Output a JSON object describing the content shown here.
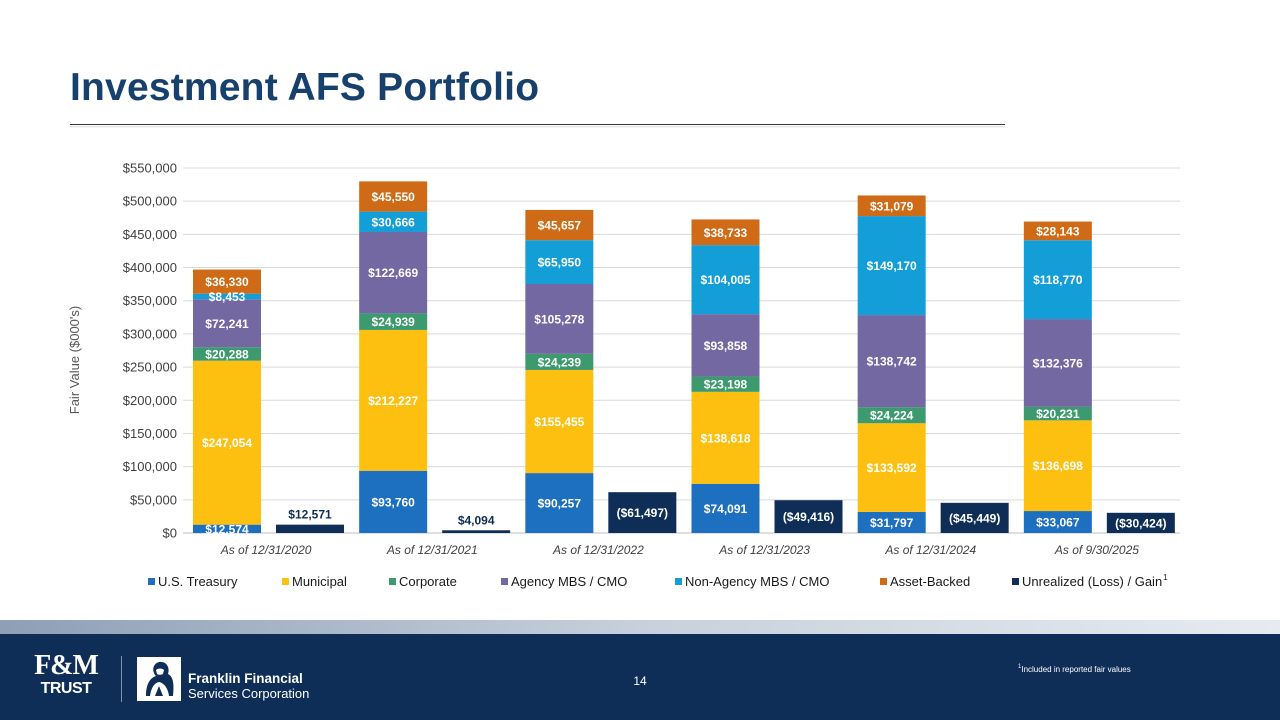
{
  "slide": {
    "title": "Investment AFS Portfolio",
    "page_number": "14",
    "footnote_marker": "1",
    "footnote_text": "Included in reported fair values"
  },
  "footer": {
    "fm_logo_top": "F&M",
    "fm_logo_bottom": "TRUST",
    "company_line1": "Franklin Financial",
    "company_line2": "Services Corporation"
  },
  "colors": {
    "title": "#17406d",
    "footer_bg": "#0e2d57",
    "treasury": "#1d6fbf",
    "municipal": "#fdc011",
    "corporate": "#3c9a6e",
    "agency": "#7468a3",
    "non_agency": "#149ed8",
    "asset_backed": "#cf6b16",
    "unrealized": "#0e2d57"
  },
  "chart_data": {
    "type": "bar",
    "stacked": true,
    "ylabel": "Fair Value ($000's)",
    "ylim": [
      0,
      550000
    ],
    "y_tick_step": 50000,
    "y_tick_labels": [
      "$0",
      "$50,000",
      "$100,000",
      "$150,000",
      "$200,000",
      "$250,000",
      "$300,000",
      "$350,000",
      "$400,000",
      "$450,000",
      "$500,000",
      "$550,000"
    ],
    "grid": true,
    "legend_position": "bottom",
    "categories": [
      "As of 12/31/2020",
      "As of 12/31/2021",
      "As of 12/31/2022",
      "As of 12/31/2023",
      "As of 12/31/2024",
      "As of 9/30/2025"
    ],
    "series": [
      {
        "key": "treasury",
        "name": "U.S. Treasury",
        "values": [
          12574,
          93760,
          90257,
          74091,
          31797,
          33067
        ],
        "labels": [
          "$12,574",
          "$93,760",
          "$90,257",
          "$74,091",
          "$31,797",
          "$33,067"
        ]
      },
      {
        "key": "municipal",
        "name": "Municipal",
        "values": [
          247054,
          212227,
          155455,
          138618,
          133592,
          136698
        ],
        "labels": [
          "$247,054",
          "$212,227",
          "$155,455",
          "$138,618",
          "$133,592",
          "$136,698"
        ]
      },
      {
        "key": "corporate",
        "name": "Corporate",
        "values": [
          20288,
          24939,
          24239,
          23198,
          24224,
          20231
        ],
        "labels": [
          "$20,288",
          "$24,939",
          "$24,239",
          "$23,198",
          "$24,224",
          "$20,231"
        ]
      },
      {
        "key": "agency",
        "name": "Agency MBS / CMO",
        "values": [
          72241,
          122669,
          105278,
          93858,
          138742,
          132376
        ],
        "labels": [
          "$72,241",
          "$122,669",
          "$105,278",
          "$93,858",
          "$138,742",
          "$132,376"
        ]
      },
      {
        "key": "non_agency",
        "name": "Non-Agency MBS / CMO",
        "values": [
          8453,
          30666,
          65950,
          104005,
          149170,
          118770
        ],
        "labels": [
          "$8,453",
          "$30,666",
          "$65,950",
          "$104,005",
          "$149,170",
          "$118,770"
        ]
      },
      {
        "key": "asset_backed",
        "name": "Asset-Backed",
        "values": [
          36330,
          45550,
          45657,
          38733,
          31079,
          28143
        ],
        "labels": [
          "$36,330",
          "$45,550",
          "$45,657",
          "$38,733",
          "$31,079",
          "$28,143"
        ]
      }
    ],
    "unrealized": {
      "key": "unrealized",
      "name": "Unrealized (Loss) / Gain",
      "legend_superscript": "1",
      "values": [
        12571,
        4094,
        -61497,
        -49416,
        -45449,
        -30424
      ],
      "labels": [
        "$12,571",
        "$4,094",
        "($61,497)",
        "($49,416)",
        "($45,449)",
        "($30,424)"
      ],
      "note": "Negative values are drawn as bar heights of their magnitude above zero"
    }
  }
}
